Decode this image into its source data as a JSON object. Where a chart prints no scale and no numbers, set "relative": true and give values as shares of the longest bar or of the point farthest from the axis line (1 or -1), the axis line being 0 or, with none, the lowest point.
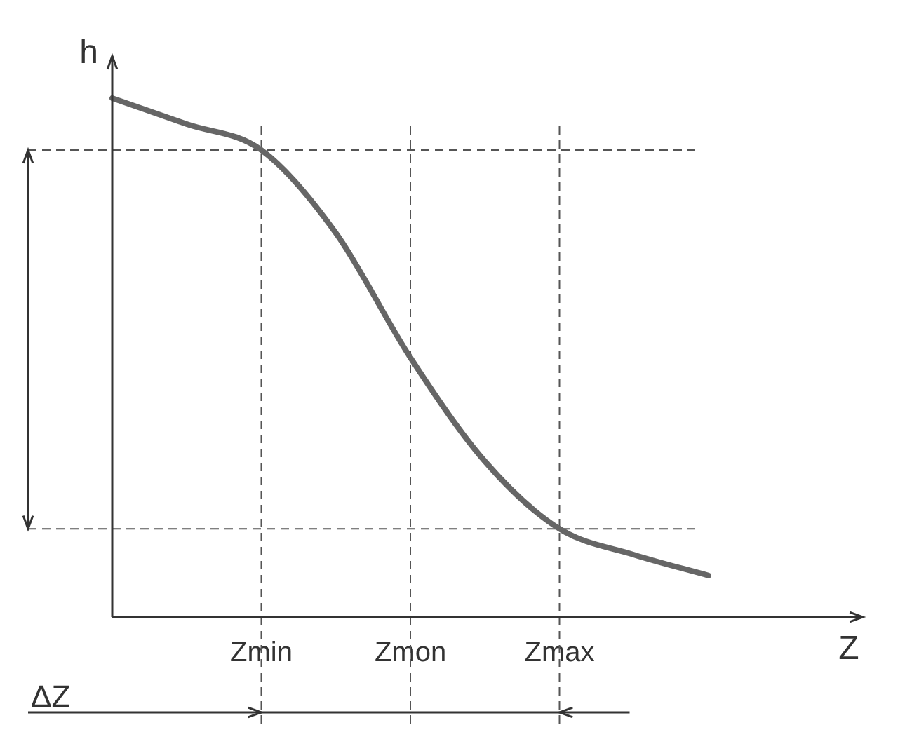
{
  "chart_data": {
    "type": "line",
    "xlabel": "Z",
    "ylabel": "h",
    "relative": true,
    "categories": [
      null,
      null,
      "Zmin",
      null,
      "Zmon",
      null,
      "Zmax",
      null,
      null
    ],
    "series": [
      {
        "color": "#666666",
        "values": [
          1.0,
          0.95,
          0.9,
          0.74,
          0.5,
          0.3,
          0.17,
          0.12,
          0.08
        ]
      }
    ],
    "ref_lines": [
      {
        "axis": "x",
        "value": "Zmin",
        "line_style": "dashed"
      },
      {
        "axis": "x",
        "value": "Zmon",
        "line_style": "dashed"
      },
      {
        "axis": "x",
        "value": "Zmax",
        "line_style": "dashed"
      },
      {
        "axis": "y",
        "value": 0.9,
        "line_style": "dashed"
      },
      {
        "axis": "y",
        "value": 0.17,
        "line_style": "dashed"
      }
    ],
    "annotations": [
      "ΔZ"
    ],
    "grid": false,
    "legend": false,
    "marker": "none",
    "line_style": "solid"
  }
}
